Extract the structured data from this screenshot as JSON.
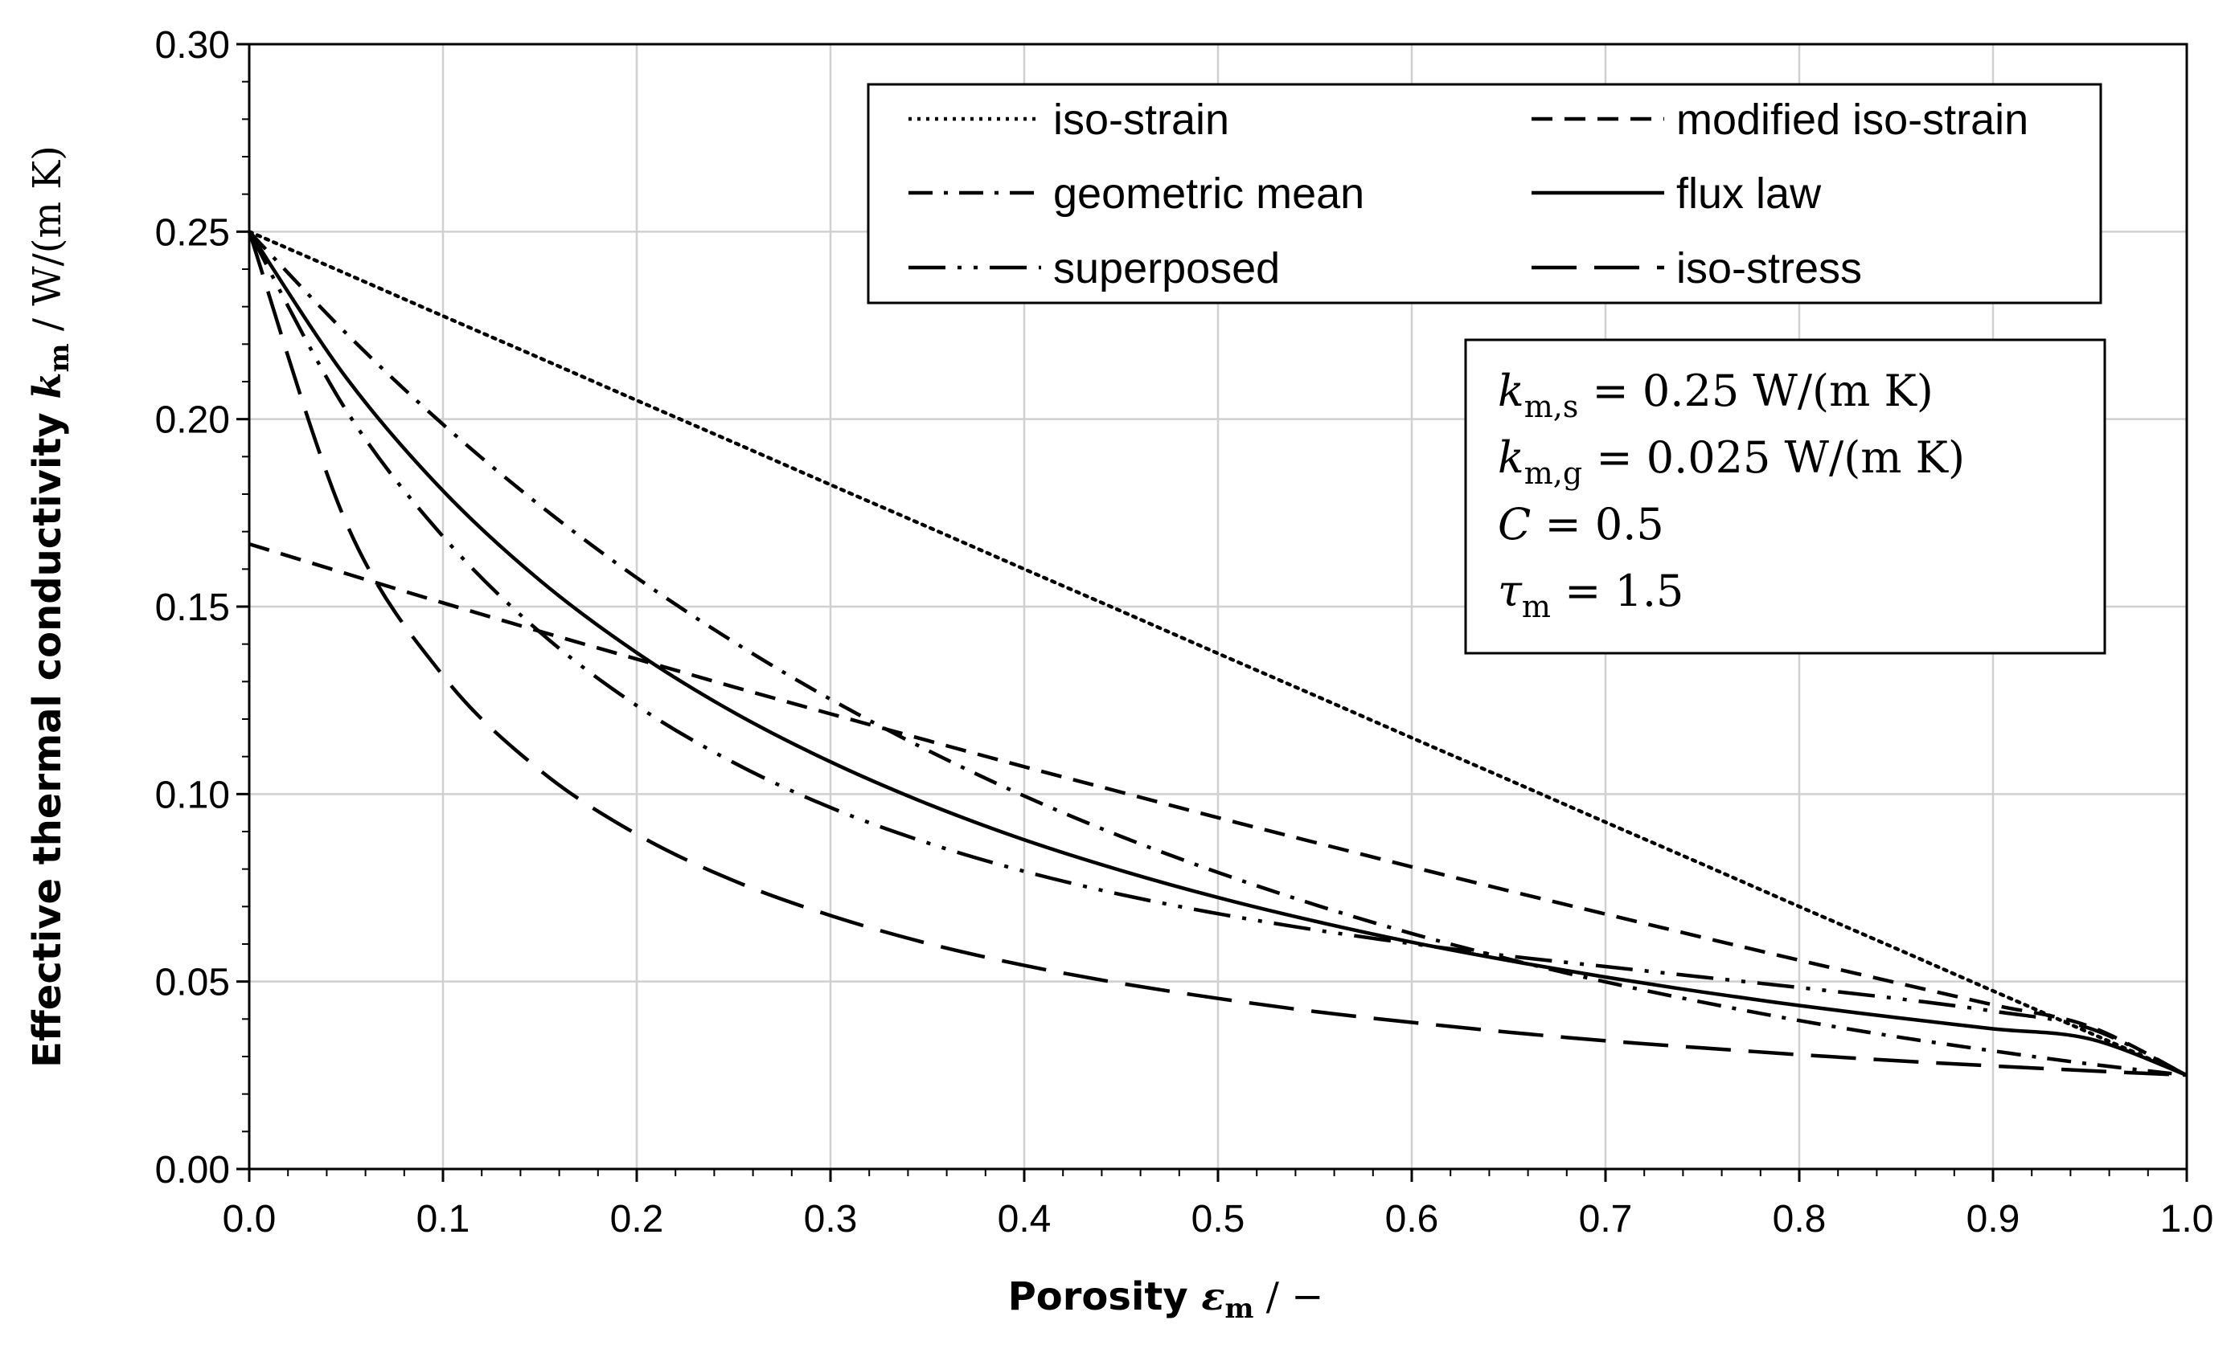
{
  "chart_data": {
    "type": "line",
    "xlabel": {
      "prefix": "Porosity ",
      "symbol": "ε",
      "subscript": "m",
      "suffix": " / −"
    },
    "ylabel": {
      "prefix": "Effective thermal conductivity ",
      "symbol": "k",
      "subscript": "m",
      "suffix": " / W/(m K)"
    },
    "xlim": [
      0,
      1
    ],
    "ylim": [
      0,
      0.3
    ],
    "x_ticks": [
      "0.0",
      "0.1",
      "0.2",
      "0.3",
      "0.4",
      "0.5",
      "0.6",
      "0.7",
      "0.8",
      "0.9",
      "1.0"
    ],
    "y_ticks": [
      "0.00",
      "0.05",
      "0.10",
      "0.15",
      "0.20",
      "0.25",
      "0.30"
    ],
    "grid": true,
    "legend_position": "top-right",
    "x": [
      0,
      0.05,
      0.1,
      0.15,
      0.2,
      0.25,
      0.3,
      0.35,
      0.4,
      0.45,
      0.5,
      0.55,
      0.6,
      0.65,
      0.7,
      0.75,
      0.8,
      0.85,
      0.9,
      0.95,
      1.0
    ],
    "series": [
      {
        "name": "iso-strain",
        "style": "dotted",
        "values": [
          0.25,
          0.2388,
          0.2275,
          0.2163,
          0.205,
          0.1938,
          0.1825,
          0.1713,
          0.16,
          0.1488,
          0.1375,
          0.1263,
          0.115,
          0.1038,
          0.0925,
          0.0813,
          0.07,
          0.0588,
          0.0475,
          0.0363,
          0.025
        ]
      },
      {
        "name": "modified iso-strain",
        "style": "dashed",
        "values": [
          0.1667,
          0.1588,
          0.151,
          0.1434,
          0.136,
          0.1286,
          0.1214,
          0.1143,
          0.1073,
          0.1005,
          0.0937,
          0.0871,
          0.0806,
          0.0742,
          0.068,
          0.0618,
          0.0557,
          0.0497,
          0.0438,
          0.038,
          0.025
        ]
      },
      {
        "name": "geometric mean",
        "style": "dash-dot",
        "values": [
          0.25,
          0.2229,
          0.1986,
          0.177,
          0.1577,
          0.1406,
          0.1253,
          0.1117,
          0.0995,
          0.0887,
          0.0791,
          0.0705,
          0.0628,
          0.056,
          0.0499,
          0.0445,
          0.0396,
          0.0353,
          0.0315,
          0.028,
          0.025
        ]
      },
      {
        "name": "flux law",
        "style": "solid",
        "values": [
          0.25,
          0.2111,
          0.1809,
          0.157,
          0.1377,
          0.1218,
          0.1086,
          0.0974,
          0.0878,
          0.0796,
          0.0724,
          0.0661,
          0.0605,
          0.0556,
          0.0512,
          0.0472,
          0.0436,
          0.0404,
          0.0374,
          0.0347,
          0.025
        ]
      },
      {
        "name": "superposed",
        "style": "dash-dot-dot",
        "values": [
          0.25,
          0.2024,
          0.1687,
          0.1432,
          0.1236,
          0.1084,
          0.0964,
          0.087,
          0.0794,
          0.0732,
          0.0681,
          0.0638,
          0.0601,
          0.0568,
          0.054,
          0.0512,
          0.0484,
          0.0455,
          0.0421,
          0.0375,
          0.025
        ]
      },
      {
        "name": "iso-stress",
        "style": "long-dash",
        "values": [
          0.25,
          0.1724,
          0.1316,
          0.1064,
          0.0893,
          0.0769,
          0.0676,
          0.0602,
          0.0543,
          0.0495,
          0.0455,
          0.042,
          0.0391,
          0.0365,
          0.0342,
          0.0323,
          0.0305,
          0.0289,
          0.0275,
          0.0262,
          0.025
        ]
      }
    ],
    "parameters": [
      {
        "symbol": "k",
        "subscript": "m,s",
        "text": " = 0.25 W/(m K)"
      },
      {
        "symbol": "k",
        "subscript": "m,g",
        "text": " = 0.025 W/(m K)"
      },
      {
        "symbol": "C",
        "subscript": "",
        "text": " = 0.5"
      },
      {
        "symbol": "τ",
        "subscript": "m",
        "text": " = 1.5"
      }
    ]
  }
}
